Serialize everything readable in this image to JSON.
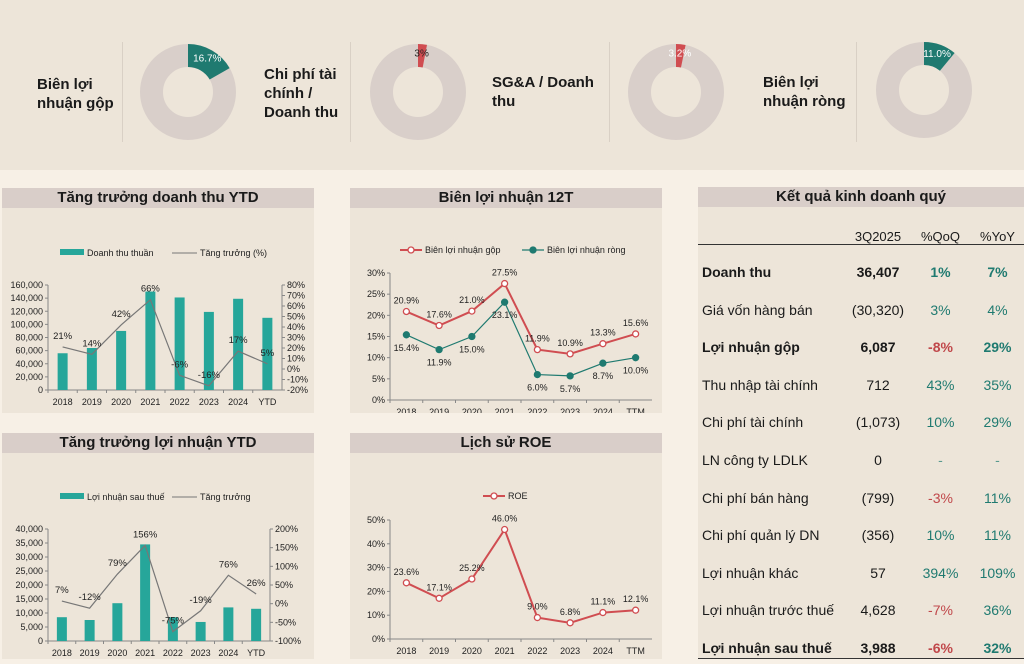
{
  "colors": {
    "teal": "#1f7a70",
    "bar_teal": "#26a69a",
    "red": "#d04d51",
    "donut_bg": "#d9cfca",
    "growth_line": "#777777"
  },
  "kpis": [
    {
      "label": "Biên lợi nhuận gộp",
      "value": 16.7,
      "value_label": "16.7%",
      "color": "#1f7a70"
    },
    {
      "label": "Chi phí tài chính / Doanh thu",
      "value": 3,
      "value_label": "3%",
      "color": "#d04d51"
    },
    {
      "label": "SG&A / Doanh thu",
      "value": 3.2,
      "value_label": "3.2%",
      "color": "#d04d51"
    },
    {
      "label": "Biên lợi nhuận ròng",
      "value": 11.0,
      "value_label": "11.0%",
      "color": "#1f7a70"
    }
  ],
  "kpi_labels": {
    "k0_l1": "Biên lợi",
    "k0_l2": "nhuận gộp",
    "k1_l1": "Chi phí tài",
    "k1_l2": "chính /",
    "k1_l3": "Doanh thu",
    "k2_l1": "SG&A / Doanh",
    "k2_l2": "thu",
    "k3_l1": "Biên lợi",
    "k3_l2": "nhuận ròng"
  },
  "chart_data": [
    {
      "id": "revenue",
      "type": "bar",
      "title": "Tăng trưởng doanh thu YTD",
      "categories": [
        "2018",
        "2019",
        "2020",
        "2021",
        "2022",
        "2023",
        "2024",
        "YTD"
      ],
      "series": [
        {
          "name": "Doanh thu thuần",
          "type": "bar",
          "axis": "left",
          "values": [
            56000,
            64000,
            90000,
            150000,
            141000,
            119000,
            139000,
            110000
          ]
        },
        {
          "name": "Tăng trưởng (%)",
          "type": "line",
          "axis": "right",
          "values": [
            21,
            14,
            42,
            66,
            -6,
            -16,
            17,
            5
          ],
          "labels": [
            "21%",
            "14%",
            "42%",
            "66%",
            "-6%",
            "-16%",
            "17%",
            "5%"
          ]
        }
      ],
      "y_left": {
        "min": 0,
        "max": 160000,
        "step": 20000,
        "ticks": [
          "0",
          "20,000",
          "40,000",
          "60,000",
          "80,000",
          "100,000",
          "120,000",
          "140,000",
          "160,000"
        ]
      },
      "y_right": {
        "min": -20,
        "max": 80,
        "step": 10,
        "ticks": [
          "-20%",
          "-10%",
          "0%",
          "10%",
          "20%",
          "30%",
          "40%",
          "50%",
          "60%",
          "70%",
          "80%"
        ]
      },
      "legend": "top"
    },
    {
      "id": "margin",
      "type": "line",
      "title": "Biên lợi nhuận 12T",
      "categories": [
        "2018",
        "2019",
        "2020",
        "2021",
        "2022",
        "2023",
        "2024",
        "TTM"
      ],
      "series": [
        {
          "name": "Biên lợi nhuận gộp",
          "values": [
            20.9,
            17.6,
            21.0,
            27.5,
            11.9,
            10.9,
            13.3,
            15.6
          ],
          "labels": [
            "20.9%",
            "17.6%",
            "21.0%",
            "27.5%",
            "11.9%",
            "10.9%",
            "13.3%",
            "15.6%"
          ]
        },
        {
          "name": "Biên lợi nhuận ròng",
          "values": [
            15.4,
            11.9,
            15.0,
            23.1,
            6.0,
            5.7,
            8.7,
            10.0
          ],
          "labels": [
            "15.4%",
            "11.9%",
            "15.0%",
            "23.1%",
            "6.0%",
            "5.7%",
            "8.7%",
            "10.0%"
          ]
        }
      ],
      "y": {
        "min": 0,
        "max": 30,
        "step": 5,
        "ticks": [
          "0%",
          "5%",
          "10%",
          "15%",
          "20%",
          "25%",
          "30%"
        ]
      },
      "legend": "top"
    },
    {
      "id": "profit",
      "type": "bar",
      "title": "Tăng trưởng lợi nhuận YTD",
      "categories": [
        "2018",
        "2019",
        "2020",
        "2021",
        "2022",
        "2023",
        "2024",
        "YTD"
      ],
      "series": [
        {
          "name": "Lợi nhuận sau thuế",
          "type": "bar",
          "axis": "left",
          "values": [
            8500,
            7500,
            13500,
            34500,
            8500,
            6800,
            12000,
            11500
          ]
        },
        {
          "name": "Tăng trưởng",
          "type": "line",
          "axis": "right",
          "values": [
            7,
            -12,
            79,
            156,
            -75,
            -19,
            76,
            26
          ],
          "labels": [
            "7%",
            "-12%",
            "79%",
            "156%",
            "-75%",
            "-19%",
            "76%",
            "26%"
          ]
        }
      ],
      "y_left": {
        "min": 0,
        "max": 40000,
        "step": 5000,
        "ticks": [
          "0",
          "5,000",
          "10,000",
          "15,000",
          "20,000",
          "25,000",
          "30,000",
          "35,000",
          "40,000"
        ]
      },
      "y_right": {
        "min": -100,
        "max": 200,
        "step": 50,
        "ticks": [
          "-100%",
          "-50%",
          "0%",
          "50%",
          "100%",
          "150%",
          "200%"
        ]
      },
      "legend": "top"
    },
    {
      "id": "roe",
      "type": "line",
      "title": "Lịch sử ROE",
      "categories": [
        "2018",
        "2019",
        "2020",
        "2021",
        "2022",
        "2023",
        "2024",
        "TTM"
      ],
      "series": [
        {
          "name": "ROE",
          "values": [
            23.6,
            17.1,
            25.2,
            46.0,
            9.0,
            6.8,
            11.1,
            12.1
          ],
          "labels": [
            "23.6%",
            "17.1%",
            "25.2%",
            "46.0%",
            "9.0%",
            "6.8%",
            "11.1%",
            "12.1%"
          ]
        }
      ],
      "y": {
        "min": 0,
        "max": 50,
        "step": 10,
        "ticks": [
          "0%",
          "10%",
          "20%",
          "30%",
          "40%",
          "50%"
        ]
      },
      "legend": "top"
    }
  ],
  "table": {
    "title": "Kết quả kinh doanh quý",
    "headers": [
      "",
      "3Q2025",
      "%QoQ",
      "%YoY"
    ],
    "rows": [
      {
        "label": "Doanh thu",
        "value": "36,407",
        "qoq": "1%",
        "yoy": "7%",
        "bold": true,
        "qoq_sign": "pos",
        "yoy_sign": "pos"
      },
      {
        "label": "Giá vốn hàng bán",
        "value": "(30,320)",
        "qoq": "3%",
        "yoy": "4%",
        "bold": false,
        "qoq_sign": "pos",
        "yoy_sign": "pos"
      },
      {
        "label": "Lợi nhuận gộp",
        "value": "6,087",
        "qoq": "-8%",
        "yoy": "29%",
        "bold": true,
        "qoq_sign": "neg",
        "yoy_sign": "pos"
      },
      {
        "label": "Thu nhập tài chính",
        "value": "712",
        "qoq": "43%",
        "yoy": "35%",
        "bold": false,
        "qoq_sign": "pos",
        "yoy_sign": "pos"
      },
      {
        "label": "Chi phí tài chính",
        "value": "(1,073)",
        "qoq": "10%",
        "yoy": "29%",
        "bold": false,
        "qoq_sign": "pos",
        "yoy_sign": "pos"
      },
      {
        "label": "LN công ty LDLK",
        "value": "0",
        "qoq": "-",
        "yoy": "-",
        "bold": false,
        "qoq_sign": "neu",
        "yoy_sign": "neu"
      },
      {
        "label": "Chi phí bán hàng",
        "value": "(799)",
        "qoq": "-3%",
        "yoy": "11%",
        "bold": false,
        "qoq_sign": "neg",
        "yoy_sign": "pos"
      },
      {
        "label": "Chi phí quản lý DN",
        "value": "(356)",
        "qoq": "10%",
        "yoy": "11%",
        "bold": false,
        "qoq_sign": "pos",
        "yoy_sign": "pos"
      },
      {
        "label": "Lợi nhuận khác",
        "value": "57",
        "qoq": "394%",
        "yoy": "109%",
        "bold": false,
        "qoq_sign": "pos",
        "yoy_sign": "pos"
      },
      {
        "label": "Lợi nhuận trước thuế",
        "value": "4,628",
        "qoq": "-7%",
        "yoy": "36%",
        "bold": false,
        "qoq_sign": "neg",
        "yoy_sign": "pos"
      },
      {
        "label": "Lợi nhuận sau thuế",
        "value": "3,988",
        "qoq": "-6%",
        "yoy": "32%",
        "bold": true,
        "qoq_sign": "neg",
        "yoy_sign": "pos"
      }
    ]
  }
}
